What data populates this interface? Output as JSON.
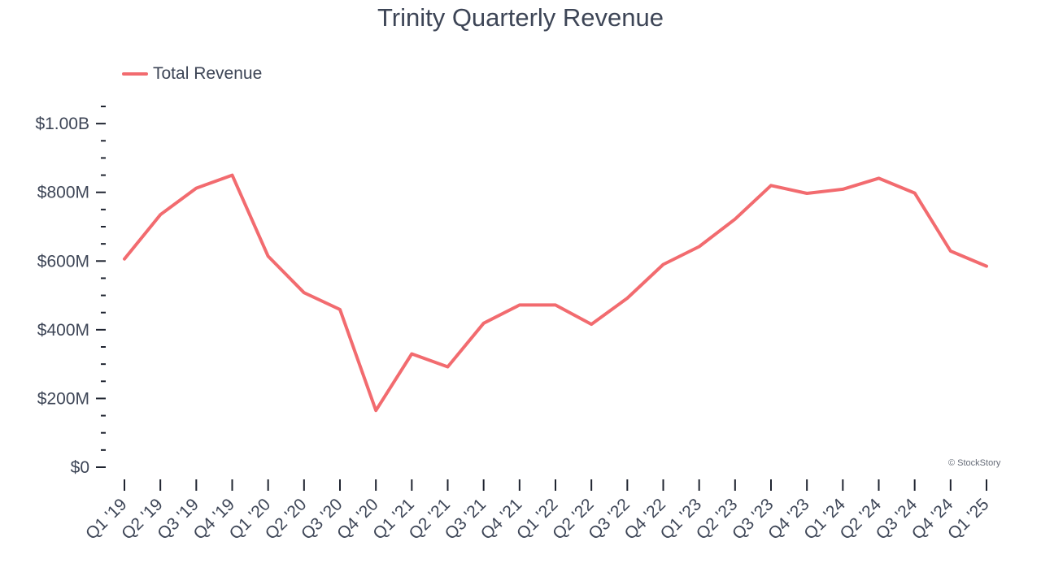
{
  "chart_data": {
    "type": "line",
    "title": "Trinity Quarterly Revenue",
    "xlabel": "",
    "ylabel": "",
    "categories": [
      "Q1 '19",
      "Q2 '19",
      "Q3 '19",
      "Q4 '19",
      "Q1 '20",
      "Q2 '20",
      "Q3 '20",
      "Q4 '20",
      "Q1 '21",
      "Q2 '21",
      "Q3 '21",
      "Q4 '21",
      "Q1 '22",
      "Q2 '22",
      "Q3 '22",
      "Q4 '22",
      "Q1 '23",
      "Q2 '23",
      "Q3 '23",
      "Q4 '23",
      "Q1 '24",
      "Q2 '24",
      "Q3 '24",
      "Q4 '24",
      "Q1 '25"
    ],
    "series": [
      {
        "name": "Total Revenue",
        "color": "#f26b6f",
        "values": [
          606,
          735,
          812,
          850,
          614,
          508,
          459,
          165,
          330,
          292,
          419,
          472,
          472,
          416,
          492,
          590,
          642,
          722,
          820,
          797,
          809,
          841,
          798,
          629,
          585
        ]
      }
    ],
    "yunit": "millions USD",
    "ylim": [
      0,
      1050
    ],
    "yticks": [
      {
        "value": 0,
        "label": "$0"
      },
      {
        "value": 200,
        "label": "$200M"
      },
      {
        "value": 400,
        "label": "$400M"
      },
      {
        "value": 600,
        "label": "$600M"
      },
      {
        "value": 800,
        "label": "$800M"
      },
      {
        "value": 1000,
        "label": "$1.00B"
      }
    ],
    "minor_step": 50,
    "grid": false,
    "legend_position": "top-left"
  },
  "watermark": "© StockStory"
}
